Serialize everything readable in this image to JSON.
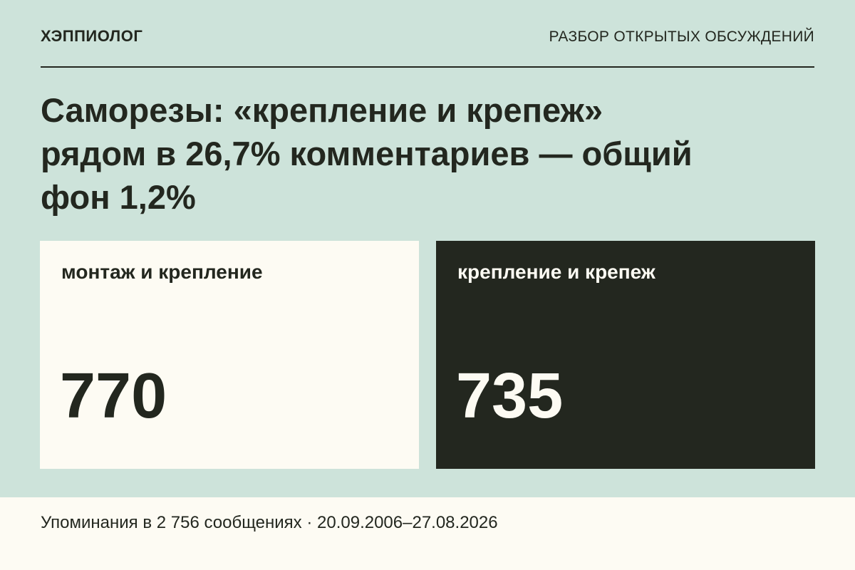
{
  "header": {
    "brand": "ХЭППИОЛОГ",
    "section": "РАЗБОР ОТКРЫТЫХ ОБСУЖДЕНИЙ"
  },
  "title_lines": [
    "Саморезы: «крепление и крепеж»",
    "рядом в 26,7% комментариев — общий",
    "фон 1,2%"
  ],
  "cards": [
    {
      "label": "монтаж и крепление",
      "value": "770"
    },
    {
      "label": "крепление и крепеж",
      "value": "735"
    }
  ],
  "footer": "Упоминания в 2 756 сообщениях · 20.09.2006–27.08.2026"
}
